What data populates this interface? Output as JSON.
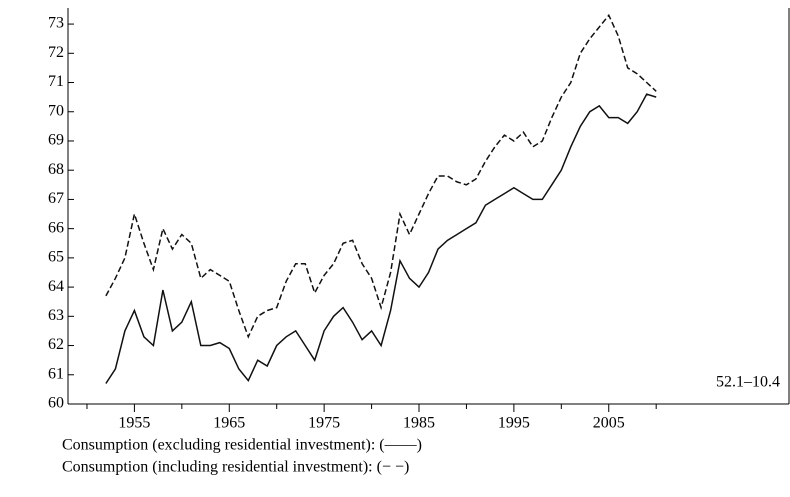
{
  "chart_data": {
    "type": "line",
    "x": [
      1952,
      1953,
      1954,
      1955,
      1956,
      1957,
      1958,
      1959,
      1960,
      1961,
      1962,
      1963,
      1964,
      1965,
      1966,
      1967,
      1968,
      1969,
      1970,
      1971,
      1972,
      1973,
      1974,
      1975,
      1976,
      1977,
      1978,
      1979,
      1980,
      1981,
      1982,
      1983,
      1984,
      1985,
      1986,
      1987,
      1988,
      1989,
      1990,
      1991,
      1992,
      1993,
      1994,
      1995,
      1996,
      1997,
      1998,
      1999,
      2000,
      2001,
      2002,
      2003,
      2004,
      2005,
      2006,
      2007,
      2008,
      2009,
      2010
    ],
    "series": [
      {
        "name": "Consumption (excluding residential investment): (——)",
        "color": "#111111",
        "line_style": "solid",
        "values": [
          60.7,
          61.2,
          62.5,
          63.2,
          62.3,
          62.0,
          63.9,
          62.5,
          62.8,
          63.5,
          62.0,
          62.0,
          62.1,
          61.9,
          61.2,
          60.8,
          61.5,
          61.3,
          62.0,
          62.3,
          62.5,
          62.0,
          61.5,
          62.5,
          63.0,
          63.3,
          62.8,
          62.2,
          62.5,
          62.0,
          63.2,
          64.9,
          64.3,
          64.0,
          64.5,
          65.3,
          65.6,
          65.8,
          66.0,
          66.2,
          66.8,
          67.0,
          67.2,
          67.4,
          67.2,
          67.0,
          67.0,
          67.5,
          68.0,
          68.8,
          69.5,
          70.0,
          70.2,
          69.8,
          69.8,
          69.6,
          70.0,
          70.6,
          70.5
        ]
      },
      {
        "name": "Consumption (including residential investment): (− −)",
        "color": "#111111",
        "line_style": "dashed",
        "values": [
          63.7,
          64.3,
          65.0,
          66.5,
          65.5,
          64.6,
          66.0,
          65.3,
          65.8,
          65.5,
          64.3,
          64.6,
          64.4,
          64.2,
          63.2,
          62.3,
          63.0,
          63.2,
          63.3,
          64.2,
          64.8,
          64.8,
          63.8,
          64.4,
          64.8,
          65.5,
          65.6,
          64.8,
          64.3,
          63.3,
          64.5,
          66.5,
          65.8,
          66.5,
          67.2,
          67.8,
          67.8,
          67.6,
          67.5,
          67.7,
          68.3,
          68.8,
          69.2,
          69.0,
          69.3,
          68.8,
          69.0,
          69.8,
          70.5,
          71.0,
          72.0,
          72.5,
          72.9,
          73.3,
          72.6,
          71.5,
          71.3,
          71.0,
          70.7
        ]
      }
    ],
    "annotation": "52.1–10.4",
    "xlim": [
      1948,
      2024
    ],
    "xticks": [
      1955,
      1965,
      1975,
      1985,
      1995,
      2005
    ],
    "xminorticks": [
      1950,
      1960,
      1970,
      1980,
      1990,
      2000,
      2010
    ],
    "ylim": [
      60,
      73.55
    ],
    "yticks": [
      60,
      61,
      62,
      63,
      64,
      65,
      66,
      67,
      68,
      69,
      70,
      71,
      72,
      73
    ]
  }
}
